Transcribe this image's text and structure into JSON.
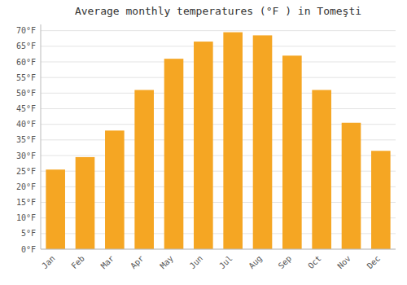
{
  "chart_data": {
    "type": "bar",
    "title": "Average monthly temperatures (°F ) in Tomeşti",
    "categories": [
      "Jan",
      "Feb",
      "Mar",
      "Apr",
      "May",
      "Jun",
      "Jul",
      "Aug",
      "Sep",
      "Oct",
      "Nov",
      "Dec"
    ],
    "values": [
      25.5,
      29.5,
      38.0,
      51.0,
      61.0,
      66.5,
      69.5,
      68.5,
      62.0,
      51.0,
      40.5,
      31.5
    ],
    "color": "#F5A623",
    "ylim": [
      0,
      72
    ],
    "yticks": [
      {
        "value": 0,
        "label": "0°F"
      },
      {
        "value": 5,
        "label": "5°F"
      },
      {
        "value": 10,
        "label": "10°F"
      },
      {
        "value": 15,
        "label": "15°F"
      },
      {
        "value": 20,
        "label": "20°F"
      },
      {
        "value": 25,
        "label": "25°F"
      },
      {
        "value": 30,
        "label": "30°F"
      },
      {
        "value": 35,
        "label": "35°F"
      },
      {
        "value": 40,
        "label": "40°F"
      },
      {
        "value": 45,
        "label": "45°F"
      },
      {
        "value": 50,
        "label": "50°F"
      },
      {
        "value": 55,
        "label": "55°F"
      },
      {
        "value": 60,
        "label": "60°F"
      },
      {
        "value": 65,
        "label": "65°F"
      },
      {
        "value": 70,
        "label": "70°F"
      }
    ],
    "grid": true
  }
}
